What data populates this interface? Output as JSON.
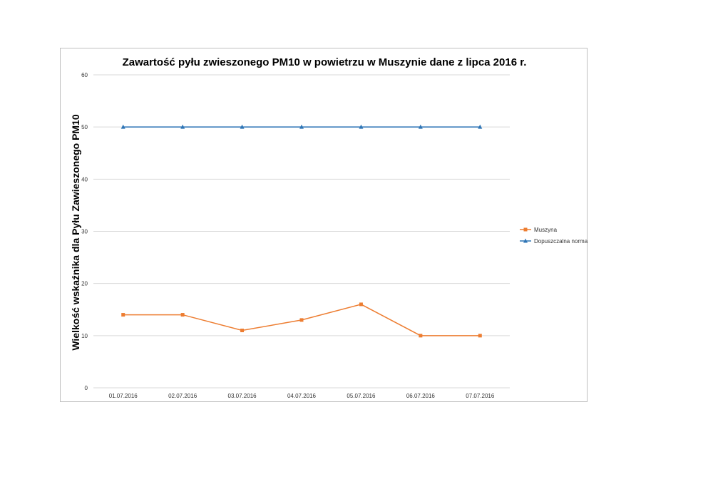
{
  "chart_data": {
    "type": "line",
    "title": "Zawartość pyłu zwieszonego PM10 w powietrzu w Muszynie dane z lipca 2016 r.",
    "xlabel": "",
    "ylabel": "Wielkość  wskaźnika dla Pyłu Zawieszonego PM10",
    "categories": [
      "01.07.2016",
      "02.07.2016",
      "03.07.2016",
      "04.07.2016",
      "05.07.2016",
      "06.07.2016",
      "07.07.2016"
    ],
    "ylim": [
      0,
      60
    ],
    "yticks": [
      0,
      10,
      20,
      30,
      40,
      50,
      60
    ],
    "grid": true,
    "legend_position": "right",
    "series": [
      {
        "name": "Muszyna",
        "values": [
          14,
          14,
          11,
          13,
          16,
          10,
          10
        ],
        "color": "#ed7d31",
        "marker": "square"
      },
      {
        "name": "Dopuszczalna norma",
        "values": [
          50,
          50,
          50,
          50,
          50,
          50,
          50
        ],
        "color": "#2e75b6",
        "marker": "triangle"
      }
    ]
  }
}
